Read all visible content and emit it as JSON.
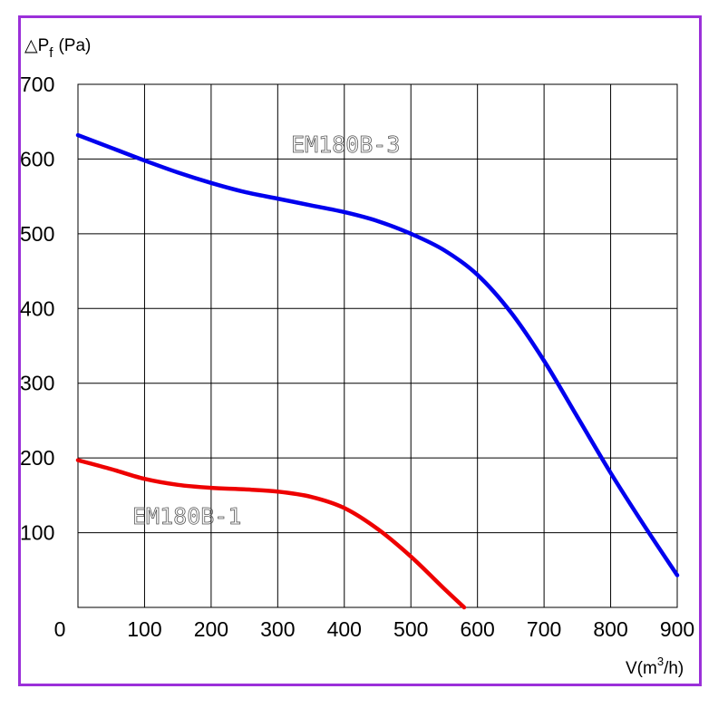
{
  "chart_data": {
    "type": "line",
    "ylabel_prefix": "△P",
    "ylabel_sub": "f",
    "ylabel_unit": "(Pa)",
    "xlabel_prefix": "V(m",
    "xlabel_sup": "3",
    "xlabel_suffix": "/h)",
    "xlim": [
      0,
      900
    ],
    "ylim": [
      0,
      700
    ],
    "x_ticks": [
      {
        "value": 0,
        "label": "0"
      },
      {
        "value": 100,
        "label": "100"
      },
      {
        "value": 200,
        "label": "200"
      },
      {
        "value": 300,
        "label": "300"
      },
      {
        "value": 400,
        "label": "400"
      },
      {
        "value": 500,
        "label": "500"
      },
      {
        "value": 600,
        "label": "600"
      },
      {
        "value": 700,
        "label": "700"
      },
      {
        "value": 800,
        "label": "800"
      },
      {
        "value": 900,
        "label": "900"
      }
    ],
    "y_ticks": [
      {
        "value": 100,
        "label": "100"
      },
      {
        "value": 200,
        "label": "200"
      },
      {
        "value": 300,
        "label": "300"
      },
      {
        "value": 400,
        "label": "400"
      },
      {
        "value": 500,
        "label": "500"
      },
      {
        "value": 600,
        "label": "600"
      },
      {
        "value": 700,
        "label": "700"
      }
    ],
    "grid": true,
    "series": [
      {
        "name": "EM180B-3",
        "color": "#0000ee",
        "x": [
          0,
          50,
          100,
          150,
          200,
          250,
          300,
          350,
          400,
          450,
          500,
          550,
          600,
          650,
          700,
          750,
          800,
          850,
          900
        ],
        "y": [
          632,
          615,
          598,
          582,
          568,
          556,
          547,
          538,
          529,
          517,
          500,
          478,
          445,
          395,
          330,
          255,
          180,
          110,
          43
        ]
      },
      {
        "name": "EM180B-1",
        "color": "#ee0000",
        "x": [
          0,
          50,
          100,
          150,
          200,
          250,
          300,
          350,
          400,
          450,
          500,
          550,
          580
        ],
        "y": [
          197,
          185,
          172,
          164,
          160,
          158,
          155,
          148,
          133,
          105,
          68,
          25,
          0
        ]
      }
    ]
  }
}
